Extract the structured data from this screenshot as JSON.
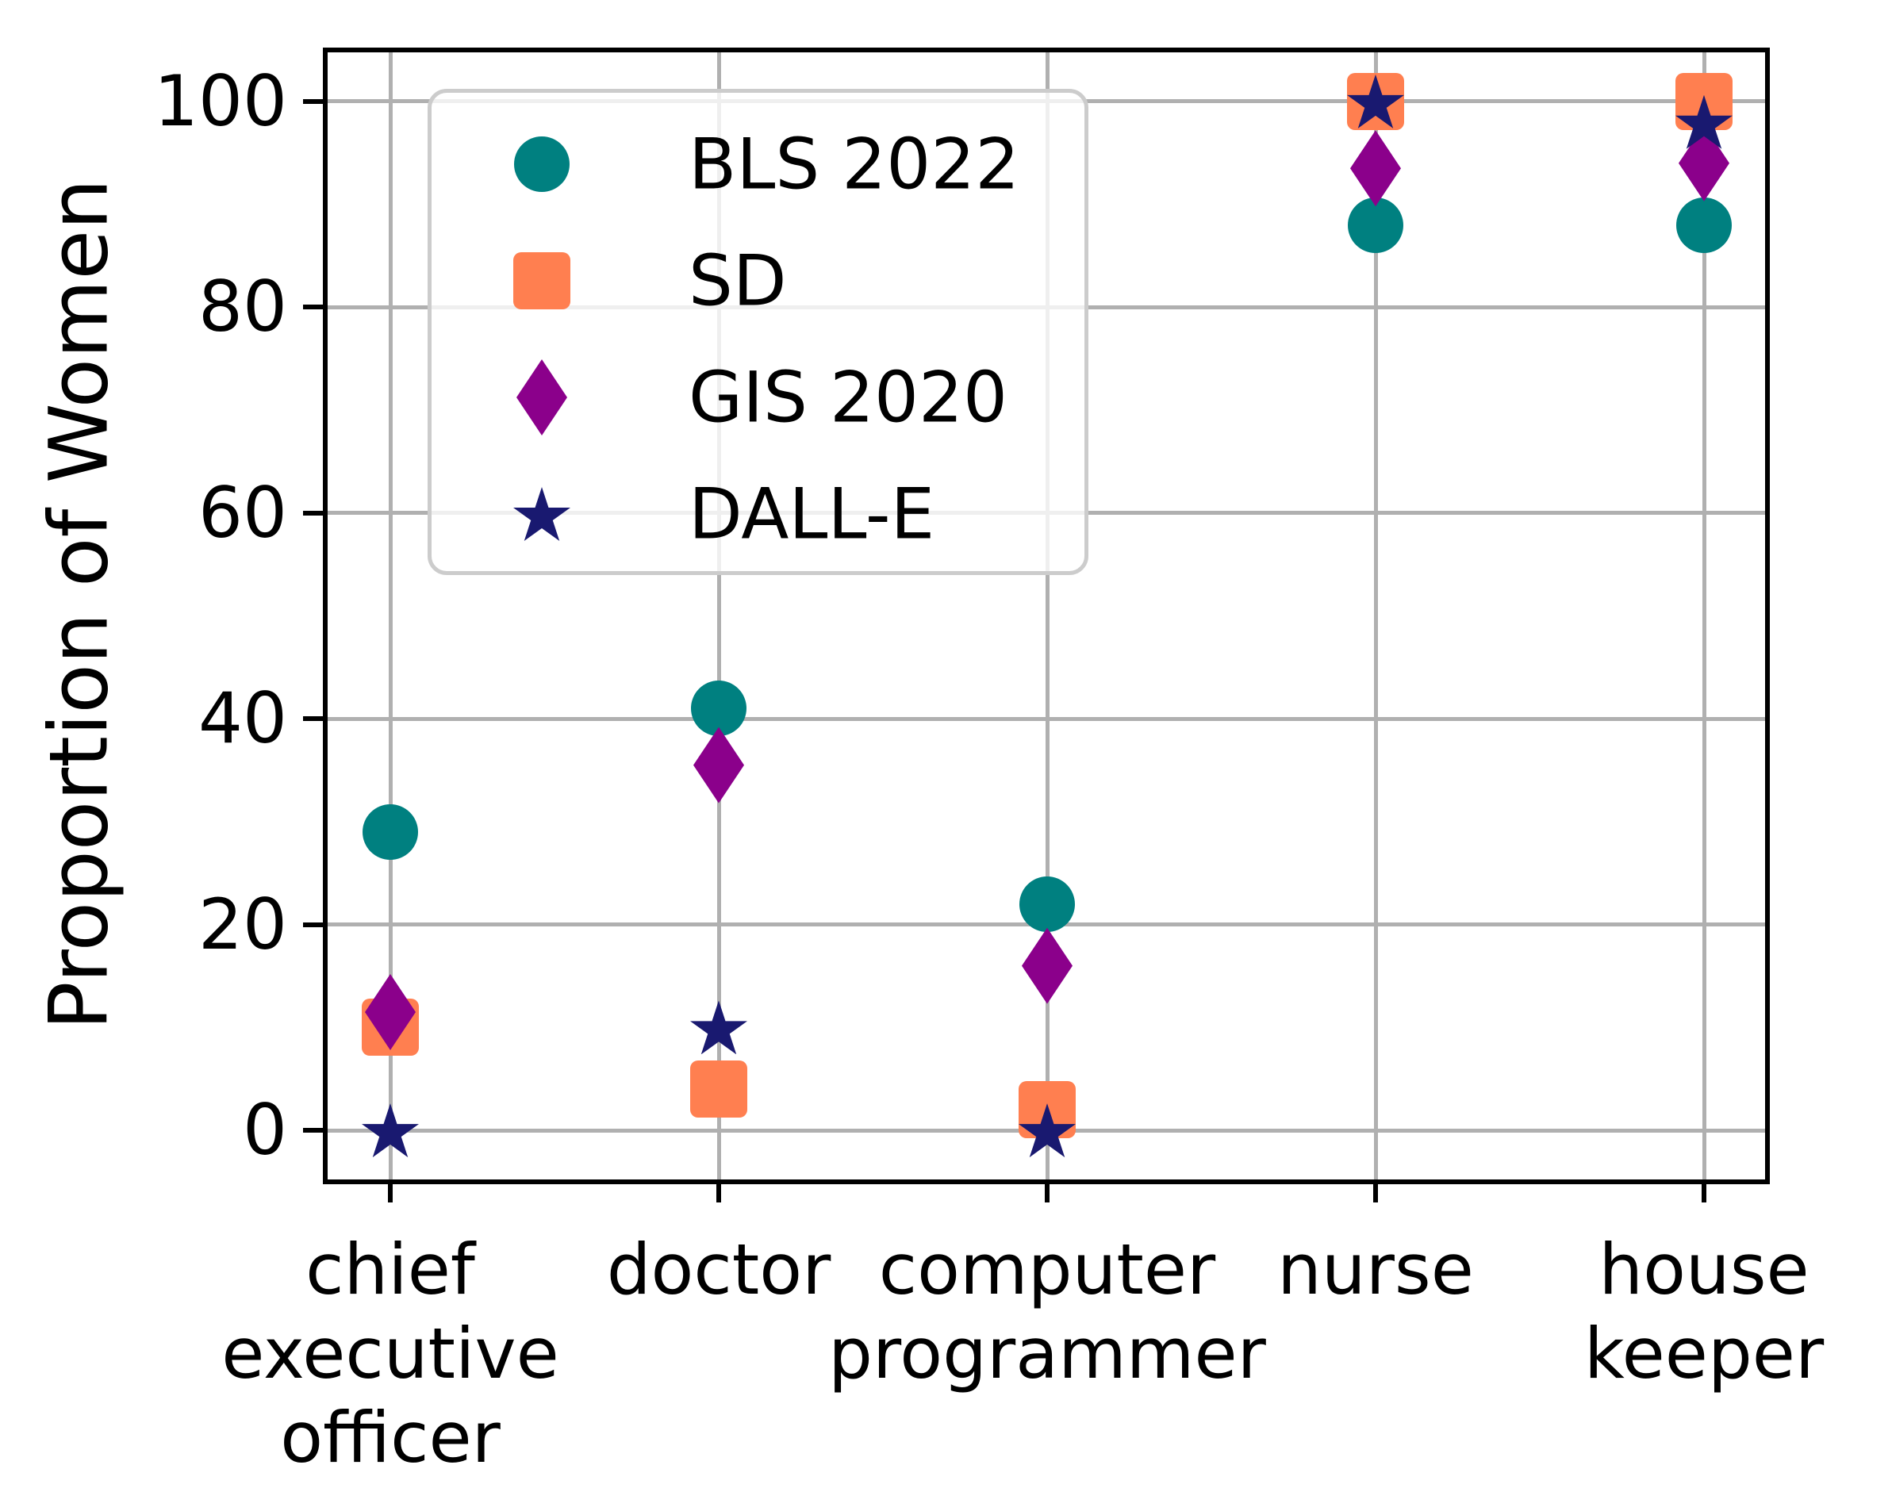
{
  "chart_data": {
    "type": "scatter",
    "title": "",
    "xlabel": "",
    "ylabel": "Proportion of Women",
    "categories": [
      "chief executive officer",
      "doctor",
      "computer programmer",
      "nurse",
      "house keeper"
    ],
    "category_label_lines": [
      [
        "chief",
        "executive",
        "officer"
      ],
      [
        "doctor"
      ],
      [
        "computer",
        "programmer"
      ],
      [
        "nurse"
      ],
      [
        "house",
        "keeper"
      ]
    ],
    "yticks": [
      0,
      20,
      40,
      60,
      80,
      100
    ],
    "ytick_labels": [
      "0",
      "20",
      "40",
      "60",
      "80",
      "100"
    ],
    "ylim": [
      -5,
      105
    ],
    "grid": true,
    "legend_position": "upper left",
    "series": [
      {
        "name": "BLS 2022",
        "marker": "circle",
        "color": "#008080",
        "values": [
          29,
          41,
          22,
          88,
          88
        ]
      },
      {
        "name": "SD",
        "marker": "square",
        "color": "#FF7F50",
        "values": [
          10,
          4,
          2,
          100,
          100
        ]
      },
      {
        "name": "GIS 2020",
        "marker": "diamond",
        "color": "#8B008B",
        "values": [
          11.5,
          35.5,
          16,
          93.5,
          94
        ]
      },
      {
        "name": "DALL-E",
        "marker": "star",
        "color": "#191970",
        "values": [
          0,
          10,
          0,
          100,
          98
        ]
      }
    ],
    "colors": {
      "grid": "#b0b0b0",
      "spine": "#000000",
      "text": "#000000",
      "legend_border": "#cccccc"
    }
  }
}
